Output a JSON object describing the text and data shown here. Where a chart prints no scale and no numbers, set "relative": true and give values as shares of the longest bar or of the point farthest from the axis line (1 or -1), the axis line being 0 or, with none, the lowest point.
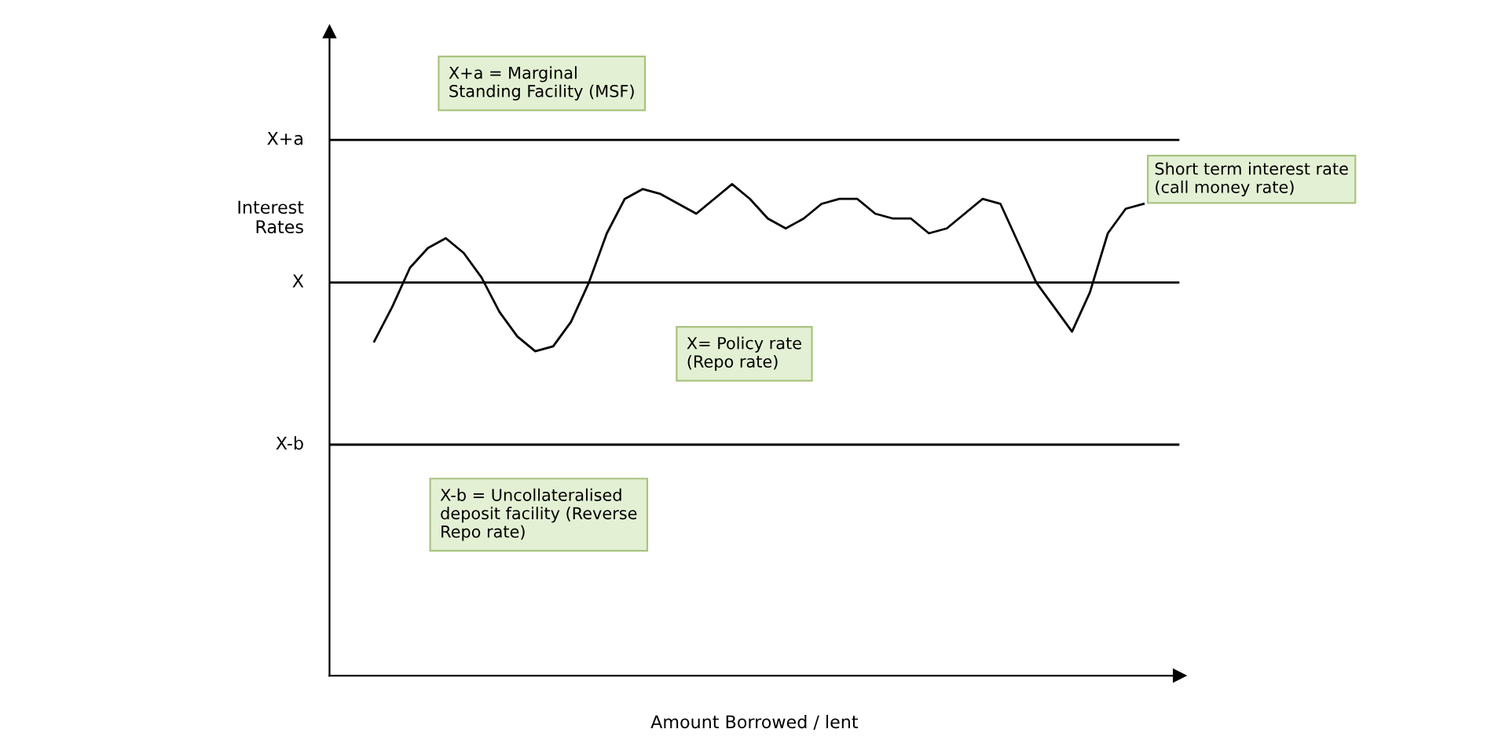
{
  "chart_data": {
    "type": "line",
    "relative": true,
    "xlabel": "Amount Borrowed / lent",
    "ylabel": "Interest\nRates",
    "categories": [
      null,
      null,
      null,
      null,
      null,
      null,
      null,
      null,
      null,
      null,
      null,
      null,
      null,
      null,
      null,
      null,
      null,
      null,
      null,
      null,
      null,
      null,
      null,
      null,
      null,
      null,
      null,
      null,
      null,
      null,
      null,
      null,
      null,
      null,
      null,
      null,
      null,
      null,
      null,
      null,
      null,
      null,
      null,
      null
    ],
    "series": [
      {
        "name": "Short term interest rate\n(call money rate)",
        "color": "#000000",
        "values": [
          0.68,
          0.75,
          0.83,
          0.87,
          0.89,
          0.86,
          0.81,
          0.74,
          0.69,
          0.66,
          0.67,
          0.72,
          0.8,
          0.9,
          0.97,
          0.99,
          0.98,
          0.96,
          0.94,
          0.97,
          1.0,
          0.97,
          0.93,
          0.91,
          0.93,
          0.96,
          0.97,
          0.97,
          0.94,
          0.93,
          0.93,
          0.9,
          0.91,
          0.94,
          0.97,
          0.96,
          0.88,
          0.8,
          0.75,
          0.7,
          0.78,
          0.9,
          0.95,
          0.96
        ]
      }
    ],
    "ref_lines": [
      {
        "axis": "y",
        "value": 1.09,
        "label": "X+a",
        "color": "#000000"
      },
      {
        "axis": "y",
        "value": 0.8,
        "label": "X",
        "color": "#000000"
      },
      {
        "axis": "y",
        "value": 0.47,
        "label": "X-b",
        "color": "#000000"
      }
    ],
    "annotations": [
      "X+a = Marginal\nStanding Facility (MSF)",
      "X= Policy rate\n(Repo rate)",
      "X-b = Uncollateralised\ndeposit facility (Reverse\nRepo rate)"
    ],
    "legend": false,
    "marker": "none",
    "line_style": "solid"
  }
}
